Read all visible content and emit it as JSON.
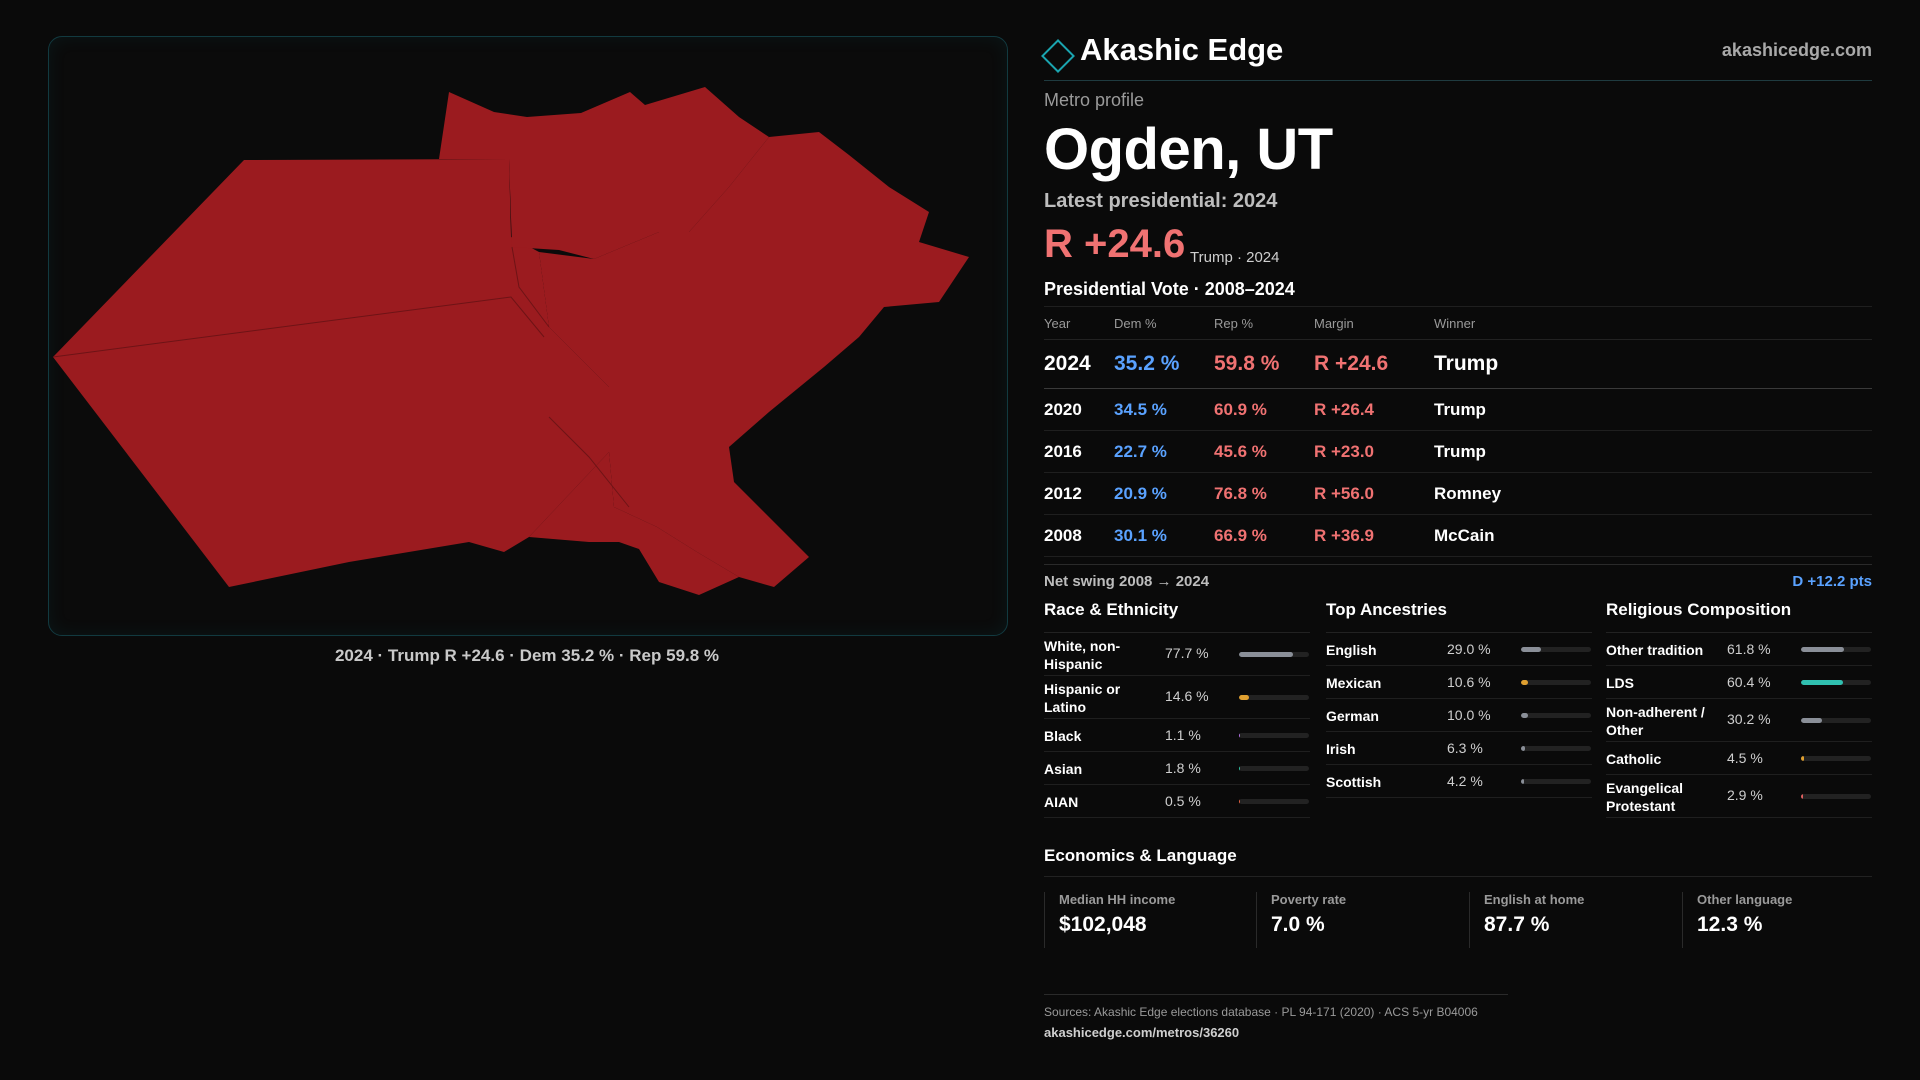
{
  "brand": {
    "name": "Akashic Edge",
    "url": "akashicedge.com",
    "logo_icon": "diamond-outline-icon"
  },
  "map": {
    "caption": "2024 · Trump R +24.6 · Dem 35.2 % · Rep 59.8 %",
    "fill_color": "#9b1b1f"
  },
  "profile": {
    "eyebrow": "Metro profile",
    "city": "Ogden, UT",
    "latest": "Latest presidential: 2024",
    "margin": "R +24.6",
    "margin_sub": "Trump · 2024"
  },
  "vote": {
    "title": "Presidential Vote · 2008–2024",
    "headers": [
      "Year",
      "Dem %",
      "Rep %",
      "Margin",
      "Winner"
    ],
    "rows": [
      {
        "year": "2024",
        "dem": "35.2 %",
        "rep": "59.8 %",
        "margin": "R +24.6",
        "winner": "Trump"
      },
      {
        "year": "2020",
        "dem": "34.5 %",
        "rep": "60.9 %",
        "margin": "R +26.4",
        "winner": "Trump"
      },
      {
        "year": "2016",
        "dem": "22.7 %",
        "rep": "45.6 %",
        "margin": "R +23.0",
        "winner": "Trump"
      },
      {
        "year": "2012",
        "dem": "20.9 %",
        "rep": "76.8 %",
        "margin": "R +56.0",
        "winner": "Romney"
      },
      {
        "year": "2008",
        "dem": "30.1 %",
        "rep": "66.9 %",
        "margin": "R +36.9",
        "winner": "McCain"
      }
    ],
    "swing_label": "Net swing 2008 → 2024",
    "swing_value": "D +12.2 pts"
  },
  "race": {
    "title": "Race & Ethnicity",
    "items": [
      {
        "label": "White, non-Hispanic",
        "pct": "77.7 %",
        "value": 77.7,
        "color": "#8a8f98"
      },
      {
        "label": "Hispanic or Latino",
        "pct": "14.6 %",
        "value": 14.6,
        "color": "#e0a030"
      },
      {
        "label": "Black",
        "pct": "1.1 %",
        "value": 1.1,
        "color": "#b070e0"
      },
      {
        "label": "Asian",
        "pct": "1.8 %",
        "value": 1.8,
        "color": "#30c0a0"
      },
      {
        "label": "AIAN",
        "pct": "0.5 %",
        "value": 0.5,
        "color": "#e06040"
      }
    ]
  },
  "ancestry": {
    "title": "Top Ancestries",
    "items": [
      {
        "label": "English",
        "pct": "29.0 %",
        "value": 29.0,
        "color": "#8a8f98"
      },
      {
        "label": "Mexican",
        "pct": "10.6 %",
        "value": 10.6,
        "color": "#e0a030"
      },
      {
        "label": "German",
        "pct": "10.0 %",
        "value": 10.0,
        "color": "#8a8f98"
      },
      {
        "label": "Irish",
        "pct": "6.3 %",
        "value": 6.3,
        "color": "#8a8f98"
      },
      {
        "label": "Scottish",
        "pct": "4.2 %",
        "value": 4.2,
        "color": "#8a8f98"
      }
    ]
  },
  "religion": {
    "title": "Religious Composition",
    "items": [
      {
        "label": "Other tradition",
        "pct": "61.8 %",
        "value": 61.8,
        "color": "#8a8f98"
      },
      {
        "label": "LDS",
        "pct": "60.4 %",
        "value": 60.4,
        "color": "#30c0b0"
      },
      {
        "label": "Non-adherent / Other",
        "pct": "30.2 %",
        "value": 30.2,
        "color": "#8a8f98"
      },
      {
        "label": "Catholic",
        "pct": "4.5 %",
        "value": 4.5,
        "color": "#e0a030"
      },
      {
        "label": "Evangelical Protestant",
        "pct": "2.9 %",
        "value": 2.9,
        "color": "#e06060"
      }
    ]
  },
  "econ": {
    "title": "Economics & Language",
    "cells": [
      {
        "label": "Median HH income",
        "value": "$102,048"
      },
      {
        "label": "Poverty rate",
        "value": "7.0 %"
      },
      {
        "label": "English at home",
        "value": "87.7 %"
      },
      {
        "label": "Other language",
        "value": "12.3 %"
      }
    ]
  },
  "sources": {
    "text": "Sources: Akashic Edge elections database · PL 94-171 (2020) · ACS 5-yr B04006",
    "url": "akashicedge.com/metros/36260"
  }
}
